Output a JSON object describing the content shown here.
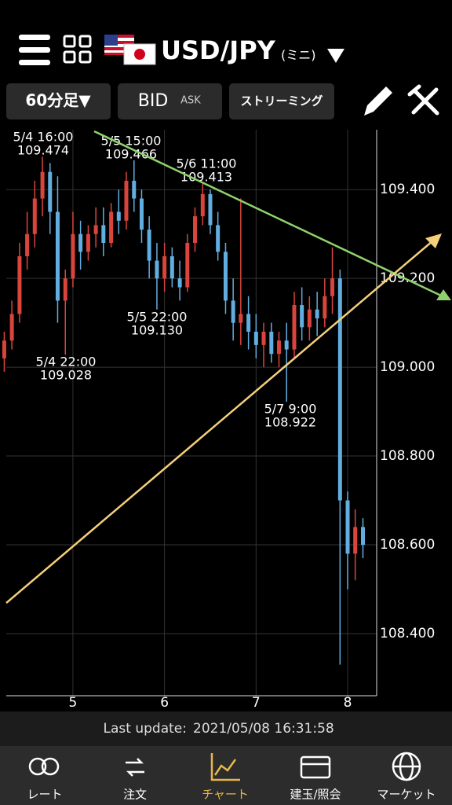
{
  "header": {
    "symbol": "USD/JPY",
    "variant": "(ミニ)"
  },
  "toolbar": {
    "timeframe": "60分足▼",
    "bid": "BID",
    "ask": "ASK",
    "mode": "ストリーミング"
  },
  "chart_data": {
    "type": "candlestick",
    "x": [
      4.25,
      4.333,
      4.417,
      4.5,
      4.583,
      4.667,
      4.75,
      4.833,
      4.917,
      5,
      5.083,
      5.167,
      5.25,
      5.333,
      5.417,
      5.5,
      5.583,
      5.667,
      5.75,
      5.833,
      5.917,
      6,
      6.083,
      6.167,
      6.25,
      6.333,
      6.417,
      6.5,
      6.583,
      6.667,
      6.75,
      6.833,
      6.917,
      7,
      7.083,
      7.167,
      7.25,
      7.333,
      7.417,
      7.5,
      7.583,
      7.667,
      7.75,
      7.833,
      7.917,
      8,
      8.083,
      8.167
    ],
    "open": [
      109.02,
      109.06,
      109.12,
      109.25,
      109.3,
      109.38,
      109.44,
      109.35,
      109.15,
      109.2,
      109.3,
      109.26,
      109.3,
      109.32,
      109.28,
      109.35,
      109.33,
      109.42,
      109.38,
      109.31,
      109.24,
      109.2,
      109.25,
      109.2,
      109.18,
      109.28,
      109.34,
      109.39,
      109.32,
      109.26,
      109.15,
      109.1,
      109.12,
      109.08,
      109.05,
      109.08,
      109.03,
      109.06,
      109.04,
      109.14,
      109.09,
      109.13,
      109.11,
      109.16,
      109.2,
      108.7,
      108.58,
      108.64
    ],
    "high": [
      109.08,
      109.15,
      109.28,
      109.35,
      109.42,
      109.474,
      109.46,
      109.43,
      109.22,
      109.35,
      109.33,
      109.32,
      109.36,
      109.36,
      109.37,
      109.4,
      109.44,
      109.466,
      109.4,
      109.34,
      109.28,
      109.28,
      109.27,
      109.24,
      109.3,
      109.36,
      109.413,
      109.4,
      109.35,
      109.28,
      109.2,
      109.38,
      109.16,
      109.12,
      109.1,
      109.1,
      109.08,
      109.1,
      109.17,
      109.18,
      109.16,
      109.17,
      109.2,
      109.27,
      109.22,
      108.72,
      108.68,
      108.66
    ],
    "low": [
      108.99,
      109.04,
      109.1,
      109.22,
      109.27,
      109.34,
      109.3,
      109.1,
      109.028,
      109.18,
      109.22,
      109.24,
      109.27,
      109.25,
      109.27,
      109.3,
      109.31,
      109.35,
      109.28,
      109.2,
      109.13,
      109.17,
      109.18,
      109.15,
      109.17,
      109.26,
      109.32,
      109.3,
      109.24,
      109.12,
      109.06,
      109.05,
      109.04,
      109.02,
      109.0,
      109.01,
      109.0,
      108.922,
      109.02,
      109.06,
      109.06,
      109.07,
      109.09,
      109.12,
      108.33,
      108.5,
      108.52,
      108.57
    ],
    "close": [
      109.06,
      109.12,
      109.25,
      109.3,
      109.38,
      109.44,
      109.35,
      109.15,
      109.2,
      109.3,
      109.26,
      109.3,
      109.32,
      109.28,
      109.35,
      109.33,
      109.42,
      109.38,
      109.31,
      109.24,
      109.2,
      109.25,
      109.2,
      109.18,
      109.28,
      109.34,
      109.39,
      109.32,
      109.26,
      109.15,
      109.1,
      109.12,
      109.08,
      109.05,
      109.08,
      109.03,
      109.06,
      109.04,
      109.14,
      109.09,
      109.13,
      109.11,
      109.16,
      109.2,
      108.7,
      108.58,
      108.64,
      108.6
    ],
    "up_color": "#d9453d",
    "down_color": "#62aee0",
    "xlim": [
      4.272,
      8.317
    ],
    "ylim": [
      108.26,
      109.535
    ],
    "xticks": [
      5,
      6,
      7,
      8
    ],
    "yticks": [
      {
        "value": 109.4,
        "label": "109.400"
      },
      {
        "value": 109.2,
        "label": "109.200"
      },
      {
        "value": 109.0,
        "label": "109.000"
      },
      {
        "value": 108.8,
        "label": "108.800"
      },
      {
        "value": 108.6,
        "label": "108.600"
      },
      {
        "value": 108.4,
        "label": "108.400"
      }
    ],
    "grid": true,
    "annotations": [
      {
        "date": "5/4 16:00",
        "price": "109.474"
      },
      {
        "date": "5/5 15:00",
        "price": "109.466"
      },
      {
        "date": "5/6 11:00",
        "price": "109.413"
      },
      {
        "date": "5/4 22:00",
        "price": "109.028"
      },
      {
        "date": "5/5 22:00",
        "price": "109.130"
      },
      {
        "date": "5/7 9:00",
        "price": "108.922"
      }
    ]
  },
  "status": {
    "label": "Last update:",
    "time": "2021/05/08 16:31:58"
  },
  "tabs": [
    "レート",
    "注文",
    "チャート",
    "建玉/照会",
    "マーケット"
  ]
}
